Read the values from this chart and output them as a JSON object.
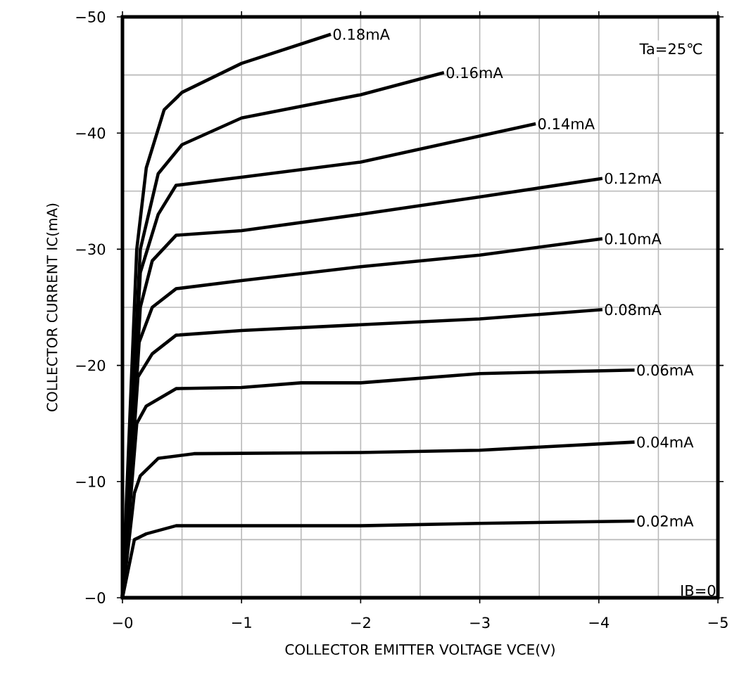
{
  "chart_data": {
    "type": "line",
    "xlabel": "COLLECTOR EMITTER VOLTAGE VCE(V)",
    "ylabel": "COLLECTOR CURRENT IC(mA)",
    "annotations": [
      "Ta=25℃"
    ],
    "xlim": [
      0,
      -5
    ],
    "ylim": [
      0,
      -50
    ],
    "xticks": [
      {
        "value": 0,
        "label": "−0"
      },
      {
        "value": -1,
        "label": "−1"
      },
      {
        "value": -2,
        "label": "−2"
      },
      {
        "value": -3,
        "label": "−3"
      },
      {
        "value": -4,
        "label": "−4"
      },
      {
        "value": -5,
        "label": "−5"
      }
    ],
    "yticks": [
      {
        "value": 0,
        "label": "−0"
      },
      {
        "value": -10,
        "label": "−10"
      },
      {
        "value": -20,
        "label": "−20"
      },
      {
        "value": -30,
        "label": "−30"
      },
      {
        "value": -40,
        "label": "−40"
      },
      {
        "value": -50,
        "label": "−50"
      }
    ],
    "grid": true,
    "legend": "right",
    "marker": "none",
    "line_style": "solid",
    "series": [
      {
        "name": "IB=0",
        "color": "#000000",
        "x": [
          0,
          -5
        ],
        "values": [
          0,
          0
        ]
      },
      {
        "name": "0.02mA",
        "color": "#000000",
        "x": [
          0,
          -0.1,
          -0.2,
          -0.45,
          -2,
          -3,
          -4.3
        ],
        "values": [
          0,
          -5,
          -5.5,
          -6.2,
          -6.2,
          -6.4,
          -6.6
        ]
      },
      {
        "name": "0.04mA",
        "color": "#000000",
        "x": [
          0,
          -0.1,
          -0.15,
          -0.3,
          -0.6,
          -2,
          -3,
          -4.3
        ],
        "values": [
          0,
          -9,
          -10.5,
          -12,
          -12.4,
          -12.5,
          -12.7,
          -13.4
        ]
      },
      {
        "name": "0.06mA",
        "color": "#000000",
        "x": [
          0,
          -0.12,
          -0.2,
          -0.45,
          -1,
          -1.5,
          -2,
          -3,
          -4.3
        ],
        "values": [
          0,
          -15,
          -16.5,
          -18,
          -18.1,
          -18.5,
          -18.5,
          -19.3,
          -19.6
        ]
      },
      {
        "name": "0.08mA",
        "color": "#000000",
        "x": [
          0,
          -0.13,
          -0.25,
          -0.45,
          -1,
          -2,
          -3,
          -4.03
        ],
        "values": [
          0,
          -19,
          -21,
          -22.6,
          -23,
          -23.5,
          -24,
          -24.8
        ]
      },
      {
        "name": "0.10mA",
        "color": "#000000",
        "x": [
          0,
          -0.14,
          -0.25,
          -0.45,
          -1,
          -2,
          -3,
          -4.03
        ],
        "values": [
          0,
          -22,
          -25,
          -26.6,
          -27.3,
          -28.5,
          -29.5,
          -30.9
        ]
      },
      {
        "name": "0.12mA",
        "color": "#000000",
        "x": [
          0,
          -0.15,
          -0.25,
          -0.45,
          -1,
          -2,
          -3,
          -4.03
        ],
        "values": [
          0,
          -25,
          -29,
          -31.2,
          -31.6,
          -33,
          -34.5,
          -36.1
        ]
      },
      {
        "name": "0.14mA",
        "color": "#000000",
        "x": [
          0,
          -0.15,
          -0.3,
          -0.45,
          -1,
          -2,
          -3.47
        ],
        "values": [
          0,
          -28,
          -33,
          -35.5,
          -36.2,
          -37.5,
          -40.8
        ]
      },
      {
        "name": "0.16mA",
        "color": "#000000",
        "x": [
          0,
          -0.15,
          -0.3,
          -0.5,
          -1,
          -2,
          -2.7
        ],
        "values": [
          0,
          -30,
          -36.5,
          -39,
          -41.3,
          -43.3,
          -45.2
        ]
      },
      {
        "name": "0.18mA",
        "color": "#000000",
        "x": [
          0,
          -0.12,
          -0.2,
          -0.35,
          -0.5,
          -1,
          -1.75
        ],
        "values": [
          0,
          -30,
          -37,
          -42,
          -43.5,
          -46,
          -48.5
        ]
      }
    ]
  }
}
